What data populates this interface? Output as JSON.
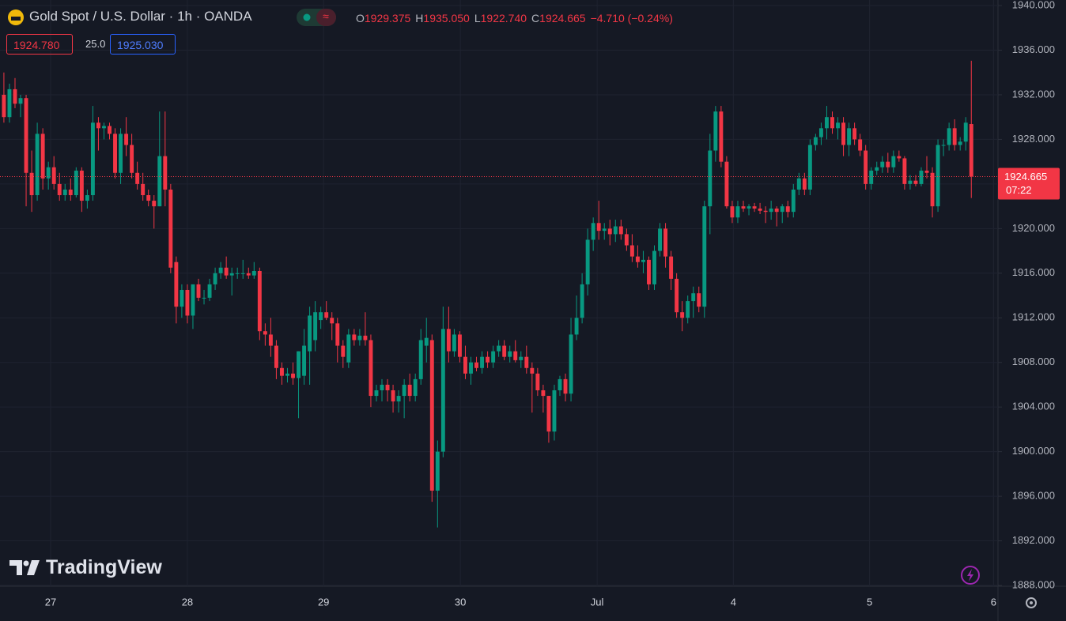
{
  "header": {
    "symbol": "Gold Spot / U.S. Dollar · 1h · OANDA",
    "ohlc": [
      {
        "key": "O",
        "value": "1929.375"
      },
      {
        "key": "H",
        "value": "1935.050"
      },
      {
        "key": "L",
        "value": "1922.740"
      },
      {
        "key": "C",
        "value": "1924.665"
      }
    ],
    "change": "−4.710 (−0.24%)",
    "bid": "1924.780",
    "spread": "25.0",
    "ask": "1925.030"
  },
  "watermark": "TradingView",
  "chart_data": {
    "type": "candlestick",
    "up_color": "#089981",
    "down_color": "#f23645",
    "grid": true,
    "countdown": "07:22",
    "open": [
      1932,
      1930,
      1932.5,
      1931.2,
      1931.7,
      1925,
      1923,
      1928.5,
      1924.5,
      1925.5,
      1924,
      1923,
      1923.5,
      1923,
      1925.2,
      1922.5,
      1923,
      1929.5,
      1929,
      1929.2,
      1928.5,
      1925,
      1928.5,
      1927.5,
      1925,
      1924,
      1923,
      1922.5,
      1922,
      1926.5,
      1923.5,
      1917,
      1913,
      1914.5,
      1912.2,
      1915,
      1913.8,
      1913.8,
      1915,
      1916,
      1916.5,
      1915.8,
      1916,
      1916,
      1916,
      1915.8,
      1916.2,
      1910.8,
      1910.5,
      1909.5,
      1907.5,
      1906.8,
      1907,
      1906.6,
      1906.8,
      1909,
      1910,
      1911.8,
      1912.5,
      1912,
      1911.5,
      1909.5,
      1908,
      1910.5,
      1910,
      1910.4,
      1910,
      1905,
      1905.5,
      1906,
      1905.5,
      1904.5,
      1905,
      1906,
      1905,
      1906.5,
      1909.5,
      1910,
      1896.5,
      1900,
      1911,
      1909,
      1910.5,
      1908.5,
      1907,
      1908,
      1907.5,
      1908.5,
      1908,
      1909,
      1909.5,
      1908.5,
      1909,
      1908.2,
      1908.5,
      1907.5,
      1907,
      1905.5,
      1905,
      1901.8,
      1905.5,
      1906.5,
      1905.2,
      1910.5,
      1912,
      1915,
      1919,
      1920.5,
      1919.8,
      1920,
      1919.5,
      1920.2,
      1919.5,
      1918.5,
      1917.5,
      1917,
      1917.2,
      1915,
      1918,
      1920,
      1917.5,
      1915.5,
      1912.5,
      1912,
      1913.5,
      1914.2,
      1913,
      1922,
      1927,
      1930.5,
      1926,
      1922,
      1921,
      1922,
      1921.8,
      1922,
      1921.8,
      1921.6,
      1921.5,
      1921.8,
      1921.5,
      1922,
      1921.5,
      1923.5,
      1924.5,
      1923.5,
      1927.5,
      1928.2,
      1929,
      1930,
      1929,
      1929.5,
      1927.5,
      1929,
      1928,
      1927,
      1924,
      1925.2,
      1925.5,
      1926,
      1925.5,
      1926.5,
      1926.3,
      1924,
      1924.3,
      1924,
      1925.2,
      1925,
      1922,
      1927.5,
      1927.5,
      1929,
      1927.5,
      1927.8,
      1929.375
    ],
    "high": [
      1934,
      1933,
      1933.5,
      1932,
      1932,
      1927,
      1929.5,
      1929,
      1926,
      1926.5,
      1925,
      1924,
      1924.5,
      1925.5,
      1925.5,
      1923.5,
      1931,
      1930,
      1929.5,
      1929.5,
      1929,
      1929,
      1930,
      1928.5,
      1926,
      1925,
      1923.5,
      1923,
      1930.5,
      1930.5,
      1924,
      1917.5,
      1915,
      1915,
      1915,
      1915.5,
      1914.5,
      1915.5,
      1916.5,
      1917,
      1917.5,
      1916.5,
      1916.5,
      1917.2,
      1916.5,
      1917,
      1916.5,
      1911.5,
      1912,
      1910,
      1908,
      1907.5,
      1908,
      1909,
      1911,
      1913,
      1913.5,
      1913,
      1913.5,
      1912.5,
      1912,
      1910,
      1911,
      1911,
      1911,
      1912.5,
      1910.5,
      1906,
      1906.5,
      1906.5,
      1906,
      1905.5,
      1906.5,
      1907,
      1907,
      1911,
      1912,
      1910.5,
      1901,
      1913,
      1913,
      1911,
      1910.8,
      1909.5,
      1908.5,
      1908.5,
      1909,
      1909,
      1909.5,
      1910,
      1910,
      1909.5,
      1910,
      1909,
      1909.5,
      1908,
      1907.5,
      1906,
      1905,
      1906,
      1906.8,
      1907,
      1912,
      1914,
      1916,
      1920,
      1921,
      1922.5,
      1920.5,
      1920.8,
      1920.8,
      1920.8,
      1920,
      1919.5,
      1918.5,
      1918,
      1917.5,
      1918.5,
      1920.5,
      1920.5,
      1918,
      1916,
      1913.5,
      1914,
      1914.8,
      1914.8,
      1922.5,
      1928.5,
      1931,
      1931,
      1926.5,
      1922.5,
      1922.5,
      1922.5,
      1922.2,
      1922.3,
      1922.3,
      1922,
      1922.5,
      1922,
      1922.2,
      1922.5,
      1924,
      1925,
      1925,
      1928,
      1928.5,
      1929.5,
      1931,
      1930.5,
      1930,
      1930,
      1929.5,
      1929.5,
      1928.5,
      1927.5,
      1925.5,
      1926,
      1926.5,
      1926.8,
      1927,
      1927,
      1926.5,
      1924.8,
      1924.8,
      1925.5,
      1926.5,
      1925.5,
      1928,
      1928,
      1929.5,
      1929.8,
      1928.2,
      1930,
      1935.05
    ],
    "low": [
      1929.5,
      1929.5,
      1930.8,
      1930,
      1922,
      1921.5,
      1922.5,
      1923.5,
      1923.5,
      1923.5,
      1922.5,
      1922.5,
      1922.5,
      1922.8,
      1921.5,
      1921.8,
      1922.5,
      1927,
      1928,
      1928,
      1924.5,
      1924,
      1926.5,
      1924.5,
      1923.5,
      1922.5,
      1922,
      1920,
      1922,
      1922,
      1916,
      1911.5,
      1912,
      1911.5,
      1911,
      1913.5,
      1913.2,
      1913.5,
      1914.5,
      1915.5,
      1915.5,
      1914,
      1915.5,
      1915.5,
      1915.5,
      1915.5,
      1910,
      1909.5,
      1908.5,
      1906.5,
      1906,
      1906.2,
      1906,
      1903,
      1906,
      1906,
      1909,
      1911,
      1911.8,
      1910,
      1908,
      1907.5,
      1907.5,
      1909.5,
      1909.5,
      1909.5,
      1904,
      1904.5,
      1904.5,
      1904.5,
      1903.5,
      1903.5,
      1903,
      1904.5,
      1904.5,
      1906,
      1908,
      1895.5,
      1893.2,
      1899.5,
      1908,
      1908.5,
      1908,
      1906.5,
      1906,
      1907.2,
      1907,
      1907.5,
      1907.5,
      1908.5,
      1908.2,
      1908,
      1908,
      1907.5,
      1907,
      1903.5,
      1905,
      1903.5,
      1900.8,
      1901,
      1905,
      1904.5,
      1904.5,
      1910,
      1911.5,
      1914,
      1918,
      1919,
      1919,
      1918.5,
      1918.8,
      1919,
      1918,
      1917,
      1916.5,
      1916,
      1914.5,
      1914.5,
      1917.5,
      1916.5,
      1914.5,
      1912,
      1910.8,
      1911.5,
      1912,
      1912.5,
      1912,
      1919.5,
      1926,
      1925.5,
      1921.8,
      1920.5,
      1920.5,
      1921.5,
      1921.2,
      1921.5,
      1921.3,
      1920.5,
      1920.8,
      1920.2,
      1920.5,
      1921,
      1921,
      1923,
      1923,
      1923,
      1927,
      1927.5,
      1928,
      1928.5,
      1928,
      1926.5,
      1926.5,
      1927.5,
      1926.5,
      1923.5,
      1923.5,
      1924.8,
      1925,
      1925,
      1925,
      1926,
      1923.5,
      1923.5,
      1923.8,
      1923.8,
      1924.5,
      1921,
      1921.5,
      1926.5,
      1927,
      1927,
      1927,
      1927,
      1922.74
    ],
    "close": [
      1930,
      1932.5,
      1931.2,
      1931.7,
      1925,
      1923,
      1928.5,
      1924.5,
      1925.5,
      1924,
      1923,
      1923.5,
      1923,
      1925.2,
      1922.5,
      1923,
      1929.5,
      1929,
      1929.2,
      1928.5,
      1925,
      1928.5,
      1927.5,
      1925,
      1924,
      1923,
      1922.5,
      1922,
      1926.5,
      1923.5,
      1916.5,
      1913,
      1914.5,
      1912.2,
      1915,
      1913.8,
      1913.8,
      1915,
      1916,
      1916.5,
      1915.8,
      1916,
      1916,
      1916,
      1915.8,
      1916.2,
      1910.8,
      1910.5,
      1909.5,
      1907.5,
      1906.8,
      1907,
      1906.6,
      1909,
      1909.5,
      1912.2,
      1912.5,
      1912.5,
      1912,
      1911.5,
      1909.5,
      1908.5,
      1910.5,
      1910,
      1910.4,
      1910,
      1905,
      1905.5,
      1906,
      1905.5,
      1904.5,
      1905,
      1906,
      1905,
      1906.5,
      1910,
      1910.2,
      1896.5,
      1900,
      1911,
      1909,
      1910.5,
      1908.5,
      1907,
      1908,
      1907.5,
      1908.5,
      1908,
      1909,
      1909.5,
      1908.5,
      1909,
      1908.2,
      1908.5,
      1907.5,
      1907,
      1905.5,
      1905,
      1901.8,
      1905.5,
      1906.5,
      1905.2,
      1910.5,
      1912,
      1915,
      1919,
      1920.5,
      1919.8,
      1920,
      1919.5,
      1920.2,
      1919.5,
      1918.5,
      1917.5,
      1917,
      1917.2,
      1915,
      1918,
      1920,
      1917.5,
      1915.5,
      1912.5,
      1912,
      1913.5,
      1914.2,
      1913,
      1922,
      1927,
      1930.5,
      1926,
      1922,
      1921,
      1922,
      1921.8,
      1922,
      1921.8,
      1921.6,
      1921.5,
      1921.8,
      1921.5,
      1922,
      1921.5,
      1923.5,
      1924.5,
      1923.5,
      1927.5,
      1928.2,
      1929,
      1930,
      1929,
      1929.5,
      1927.5,
      1929,
      1928,
      1927,
      1924,
      1925.2,
      1925.5,
      1926,
      1925.5,
      1926.5,
      1926.3,
      1924,
      1924.3,
      1924,
      1925.2,
      1925,
      1922,
      1927.5,
      1927.5,
      1929,
      1927.5,
      1927.8,
      1929.5,
      1924.665
    ],
    "xlim": [
      -0.7,
      178.8
    ],
    "xticks": [
      {
        "value": 8.4,
        "label": "27"
      },
      {
        "value": 33,
        "label": "28"
      },
      {
        "value": 57.5,
        "label": "29"
      },
      {
        "value": 82.1,
        "label": "30"
      },
      {
        "value": 106.7,
        "label": "Jul"
      },
      {
        "value": 131.2,
        "label": "4"
      },
      {
        "value": 155.7,
        "label": "5"
      },
      {
        "value": 178,
        "label": "6"
      }
    ],
    "ylim": [
      1887.93,
      1940.5
    ],
    "yticks": [
      {
        "value": 1888,
        "label": "1888.000"
      },
      {
        "value": 1892,
        "label": "1892.000"
      },
      {
        "value": 1896,
        "label": "1896.000"
      },
      {
        "value": 1900,
        "label": "1900.000"
      },
      {
        "value": 1904,
        "label": "1904.000"
      },
      {
        "value": 1908,
        "label": "1908.000"
      },
      {
        "value": 1912,
        "label": "1912.000"
      },
      {
        "value": 1916,
        "label": "1916.000"
      },
      {
        "value": 1920,
        "label": "1920.000"
      },
      {
        "value": 1924,
        "label": "1924.000"
      },
      {
        "value": 1928,
        "label": "1928.000"
      },
      {
        "value": 1932,
        "label": "1932.000"
      },
      {
        "value": 1936,
        "label": "1936.000"
      },
      {
        "value": 1940,
        "label": "1940.000"
      }
    ]
  }
}
